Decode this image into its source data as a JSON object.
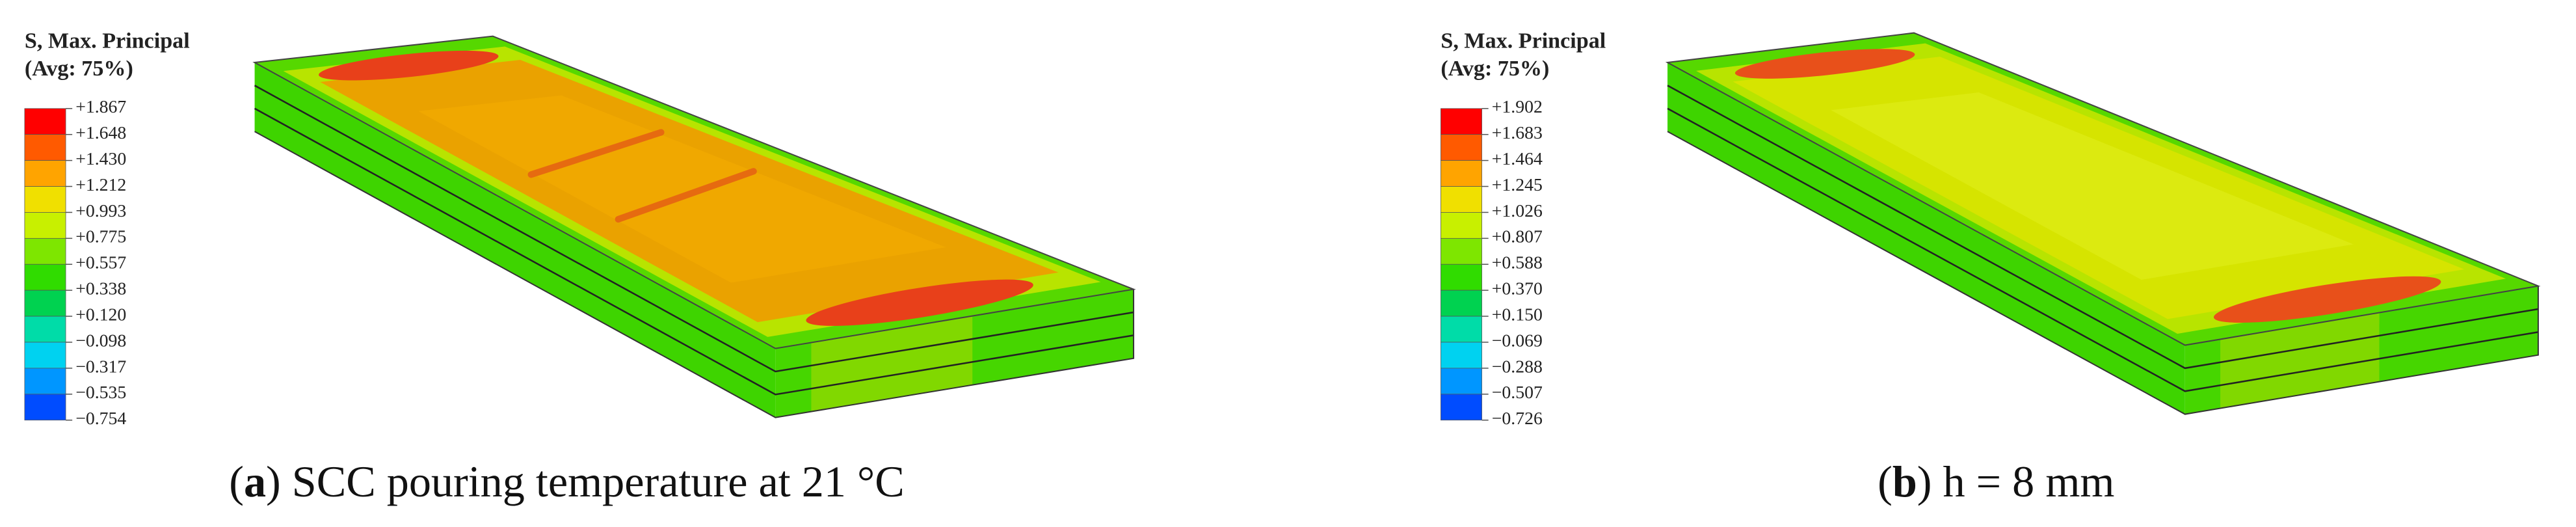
{
  "panels": [
    {
      "legend": {
        "title": [
          "S, Max. Principal",
          "(Avg: 75%)"
        ],
        "values": [
          "+1.867",
          "+1.648",
          "+1.430",
          "+1.212",
          "+0.993",
          "+0.775",
          "+0.557",
          "+0.338",
          "+0.120",
          "−0.098",
          "−0.317",
          "−0.535",
          "−0.754"
        ]
      },
      "caption": [
        "(",
        "a",
        ") SCC pouring temperature at 21 °C"
      ]
    },
    {
      "legend": {
        "title": [
          "S, Max. Principal",
          "(Avg: 75%)"
        ],
        "values": [
          "+1.902",
          "+1.683",
          "+1.464",
          "+1.245",
          "+1.026",
          "+0.807",
          "+0.588",
          "+0.370",
          "+0.150",
          "−0.069",
          "−0.288",
          "−0.507",
          "−0.726"
        ]
      },
      "caption": [
        "(",
        "b",
        ") h = 8 mm"
      ]
    }
  ]
}
